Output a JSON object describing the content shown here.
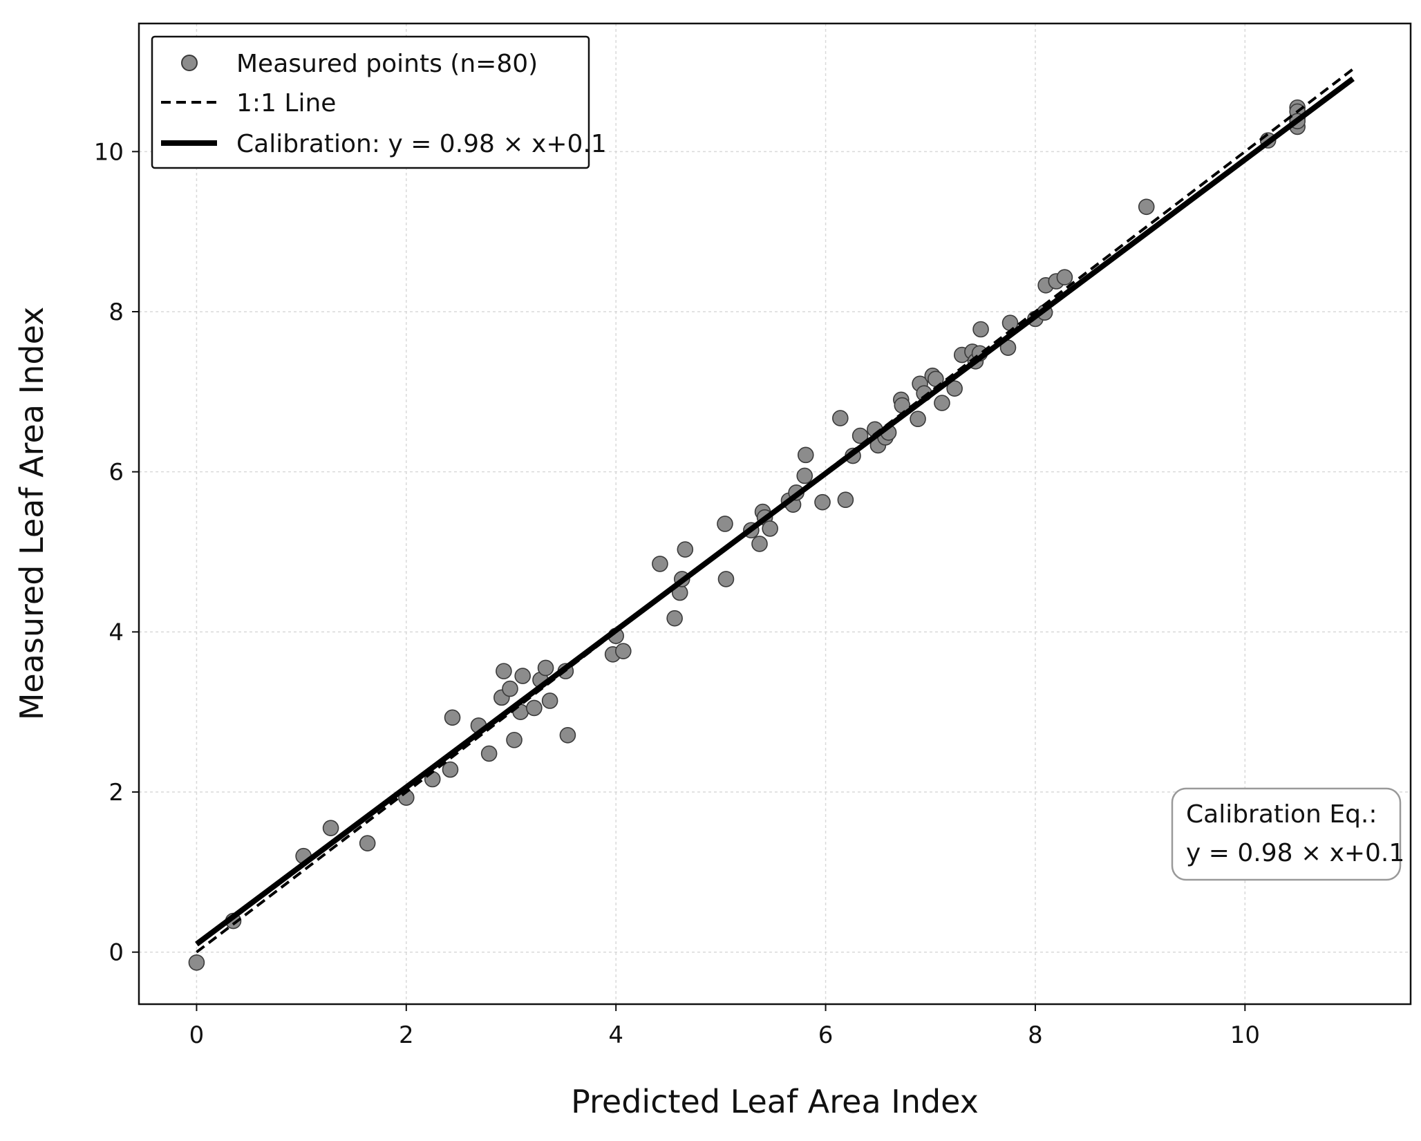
{
  "chart_data": {
    "type": "scatter",
    "xlabel": "Predicted Leaf Area Index",
    "ylabel": "Measured Leaf Area Index",
    "xlim": [
      -0.55,
      11.58
    ],
    "ylim": [
      -0.65,
      11.6
    ],
    "x_ticks": [
      0,
      2,
      4,
      6,
      8,
      10
    ],
    "y_ticks": [
      0,
      2,
      4,
      6,
      8,
      10
    ],
    "x_tick_labels": [
      "0",
      "2",
      "4",
      "6",
      "8",
      "10"
    ],
    "y_tick_labels": [
      "0",
      "2",
      "4",
      "6",
      "8",
      "10"
    ],
    "grid": true,
    "legend_position": "top-left",
    "legend": [
      {
        "label": "Measured points (n=80)",
        "kind": "marker"
      },
      {
        "label": "1:1 Line",
        "kind": "dashed"
      },
      {
        "label": "Calibration: y = 0.98 × x+0.1",
        "kind": "solid"
      }
    ],
    "annotation": {
      "position": "bottom-right",
      "line1": "Calibration Eq.:",
      "line2": "y = 0.98 × x+0.1"
    },
    "colors": {
      "marker_fill": "#8c8c8c",
      "marker_edge": "#3a3a3a",
      "line": "#000000",
      "grid": "#d9d9d9"
    },
    "series": [
      {
        "name": "Measured points (n=80)",
        "kind": "scatter",
        "points": [
          [
            0.0,
            -0.13
          ],
          [
            0.35,
            0.39
          ],
          [
            1.02,
            1.2
          ],
          [
            1.28,
            1.55
          ],
          [
            1.63,
            1.36
          ],
          [
            2.0,
            1.93
          ],
          [
            2.25,
            2.16
          ],
          [
            2.42,
            2.28
          ],
          [
            2.44,
            2.93
          ],
          [
            2.69,
            2.83
          ],
          [
            2.79,
            2.48
          ],
          [
            2.91,
            3.18
          ],
          [
            2.93,
            3.51
          ],
          [
            2.99,
            3.29
          ],
          [
            3.03,
            2.65
          ],
          [
            3.09,
            3.0
          ],
          [
            3.11,
            3.45
          ],
          [
            3.22,
            3.05
          ],
          [
            3.28,
            3.4
          ],
          [
            3.33,
            3.55
          ],
          [
            3.37,
            3.14
          ],
          [
            3.52,
            3.51
          ],
          [
            3.54,
            2.71
          ],
          [
            3.97,
            3.72
          ],
          [
            4.0,
            3.95
          ],
          [
            4.07,
            3.76
          ],
          [
            4.42,
            4.85
          ],
          [
            4.56,
            4.17
          ],
          [
            4.61,
            4.49
          ],
          [
            4.63,
            4.66
          ],
          [
            4.66,
            5.03
          ],
          [
            5.04,
            5.35
          ],
          [
            5.05,
            4.66
          ],
          [
            5.29,
            5.27
          ],
          [
            5.37,
            5.1
          ],
          [
            5.4,
            5.5
          ],
          [
            5.42,
            5.43
          ],
          [
            5.47,
            5.29
          ],
          [
            5.65,
            5.64
          ],
          [
            5.69,
            5.59
          ],
          [
            5.72,
            5.74
          ],
          [
            5.8,
            5.95
          ],
          [
            5.81,
            6.21
          ],
          [
            5.97,
            5.62
          ],
          [
            6.14,
            6.67
          ],
          [
            6.19,
            5.65
          ],
          [
            6.26,
            6.2
          ],
          [
            6.33,
            6.45
          ],
          [
            6.47,
            6.53
          ],
          [
            6.5,
            6.33
          ],
          [
            6.57,
            6.43
          ],
          [
            6.6,
            6.49
          ],
          [
            6.72,
            6.9
          ],
          [
            6.73,
            6.83
          ],
          [
            6.88,
            6.66
          ],
          [
            6.9,
            7.1
          ],
          [
            6.94,
            6.98
          ],
          [
            7.02,
            7.2
          ],
          [
            7.05,
            7.16
          ],
          [
            7.11,
            6.86
          ],
          [
            7.23,
            7.04
          ],
          [
            7.3,
            7.46
          ],
          [
            7.4,
            7.5
          ],
          [
            7.43,
            7.38
          ],
          [
            7.47,
            7.48
          ],
          [
            7.48,
            7.78
          ],
          [
            7.74,
            7.55
          ],
          [
            7.76,
            7.86
          ],
          [
            8.0,
            7.91
          ],
          [
            8.09,
            7.99
          ],
          [
            8.1,
            8.33
          ],
          [
            8.2,
            8.38
          ],
          [
            8.28,
            8.43
          ],
          [
            9.06,
            9.31
          ],
          [
            10.22,
            10.14
          ],
          [
            10.5,
            10.55
          ],
          [
            10.5,
            10.31
          ],
          [
            10.5,
            10.42
          ],
          [
            10.5,
            10.5
          ],
          [
            10.5,
            10.38
          ]
        ]
      },
      {
        "name": "1:1 Line",
        "kind": "dashed",
        "x": [
          0,
          11.03
        ],
        "y": [
          0,
          11.03
        ]
      },
      {
        "name": "Calibration: y = 0.98 × x+0.1",
        "kind": "solid",
        "x": [
          0,
          11.03
        ],
        "y": [
          0.1,
          10.91
        ]
      }
    ]
  }
}
